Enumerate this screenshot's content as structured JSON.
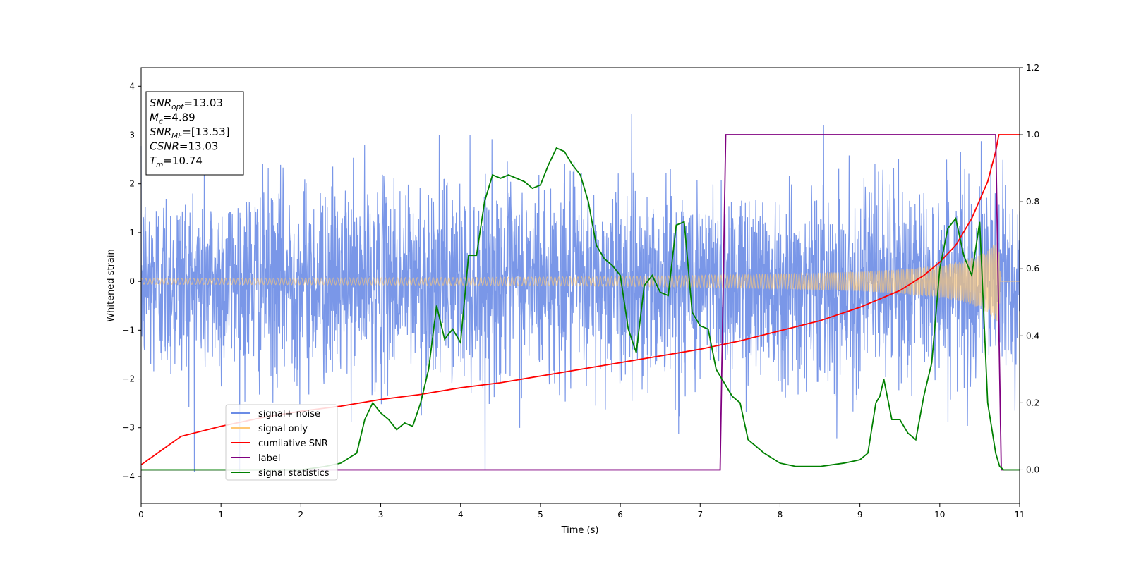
{
  "chart_data": {
    "type": "line",
    "title": "",
    "xlabel": "Time (s)",
    "ylabel": "Whitened strain",
    "xlim": [
      0,
      11
    ],
    "ylim_left": [
      -4.55,
      4.38
    ],
    "ylim_right": [
      -0.1,
      1.2
    ],
    "x_ticks": [
      0,
      1,
      2,
      3,
      4,
      5,
      6,
      7,
      8,
      9,
      10,
      11
    ],
    "y_ticks_left": [
      -4,
      -3,
      -2,
      -1,
      0,
      1,
      2,
      3,
      4
    ],
    "y_ticks_right": [
      0.0,
      0.2,
      0.4,
      0.6,
      0.8,
      1.0,
      1.2
    ],
    "legend": {
      "placement": "lower-left",
      "entries": [
        {
          "name": "signal+ noise",
          "color": "#6b8ce6"
        },
        {
          "name": "signal only",
          "color": "#ffc875"
        },
        {
          "name": "cumilative SNR",
          "color": "#ff0000"
        },
        {
          "name": "label",
          "color": "#800080"
        },
        {
          "name": "signal statistics",
          "color": "#008000"
        }
      ]
    },
    "info_box": {
      "lines": [
        {
          "var": "SNR",
          "sub": "opt",
          "val": "=13.03"
        },
        {
          "var": "M",
          "sub": "c",
          "val": "=4.89"
        },
        {
          "var": "SNR",
          "sub": "MF",
          "val": "=[13.53]"
        },
        {
          "var": "CSNR",
          "sub": "",
          "val": "=13.03"
        },
        {
          "var": "T",
          "sub": "m",
          "val": "=10.74"
        }
      ]
    },
    "series": [
      {
        "name": "signal+ noise",
        "axis": "left",
        "color": "#6b8ce6",
        "description": "whitened noisy strain, std about 1, peaks near +/-3.5",
        "noise_std": 1.0,
        "x_range": [
          0,
          11
        ]
      },
      {
        "name": "signal only",
        "axis": "left",
        "color": "#ffc875",
        "amplitude_envelope": {
          "x": [
            0,
            2,
            4,
            6,
            8,
            9,
            9.5,
            10,
            10.3,
            10.5,
            10.6,
            10.7,
            10.74,
            10.76,
            11
          ],
          "y": [
            0.06,
            0.07,
            0.08,
            0.1,
            0.15,
            0.2,
            0.25,
            0.33,
            0.42,
            0.55,
            0.65,
            0.8,
            0.9,
            0.0,
            0.0
          ]
        }
      },
      {
        "name": "cumilative SNR",
        "axis": "right",
        "color": "#ff0000",
        "x": [
          0,
          0.5,
          1,
          1.5,
          2,
          2.5,
          3,
          3.5,
          4,
          4.5,
          5,
          5.5,
          6,
          6.5,
          7,
          7.5,
          8,
          8.5,
          9,
          9.5,
          9.8,
          10,
          10.2,
          10.4,
          10.6,
          10.7,
          10.74,
          11
        ],
        "y": [
          0.015,
          0.1,
          0.13,
          0.155,
          0.175,
          0.19,
          0.21,
          0.225,
          0.245,
          0.26,
          0.28,
          0.3,
          0.32,
          0.34,
          0.36,
          0.385,
          0.415,
          0.445,
          0.485,
          0.535,
          0.58,
          0.62,
          0.67,
          0.75,
          0.86,
          0.95,
          1.0,
          1.0
        ]
      },
      {
        "name": "label",
        "axis": "right",
        "color": "#800080",
        "x": [
          0,
          7.25,
          7.32,
          10.7,
          10.77,
          11
        ],
        "y": [
          0.0,
          0.0,
          1.0,
          1.0,
          0.0,
          0.0
        ]
      },
      {
        "name": "signal statistics",
        "axis": "right",
        "color": "#008000",
        "x": [
          0,
          1,
          2,
          2.3,
          2.5,
          2.7,
          2.8,
          2.9,
          3.0,
          3.1,
          3.2,
          3.3,
          3.4,
          3.5,
          3.6,
          3.7,
          3.8,
          3.9,
          4.0,
          4.1,
          4.2,
          4.3,
          4.4,
          4.5,
          4.6,
          4.7,
          4.8,
          4.9,
          5.0,
          5.1,
          5.2,
          5.3,
          5.4,
          5.5,
          5.6,
          5.7,
          5.8,
          5.9,
          6.0,
          6.1,
          6.2,
          6.3,
          6.4,
          6.5,
          6.6,
          6.7,
          6.8,
          6.9,
          7.0,
          7.1,
          7.2,
          7.3,
          7.4,
          7.5,
          7.6,
          7.8,
          8.0,
          8.2,
          8.5,
          8.8,
          9.0,
          9.1,
          9.2,
          9.25,
          9.3,
          9.4,
          9.5,
          9.6,
          9.7,
          9.8,
          9.9,
          10.0,
          10.1,
          10.2,
          10.3,
          10.4,
          10.5,
          10.6,
          10.7,
          10.75,
          10.8,
          11
        ],
        "y": [
          0.0,
          0.0,
          0.0,
          0.01,
          0.02,
          0.05,
          0.15,
          0.2,
          0.17,
          0.15,
          0.12,
          0.14,
          0.13,
          0.2,
          0.3,
          0.49,
          0.39,
          0.42,
          0.38,
          0.64,
          0.64,
          0.8,
          0.88,
          0.87,
          0.88,
          0.87,
          0.86,
          0.84,
          0.85,
          0.91,
          0.96,
          0.95,
          0.91,
          0.88,
          0.8,
          0.67,
          0.63,
          0.61,
          0.58,
          0.42,
          0.35,
          0.55,
          0.58,
          0.53,
          0.52,
          0.73,
          0.74,
          0.47,
          0.43,
          0.42,
          0.3,
          0.26,
          0.22,
          0.2,
          0.09,
          0.05,
          0.02,
          0.01,
          0.01,
          0.02,
          0.03,
          0.05,
          0.2,
          0.22,
          0.27,
          0.15,
          0.15,
          0.11,
          0.09,
          0.22,
          0.32,
          0.6,
          0.72,
          0.75,
          0.64,
          0.58,
          0.74,
          0.2,
          0.05,
          0.01,
          0.0,
          0.0
        ]
      }
    ]
  }
}
